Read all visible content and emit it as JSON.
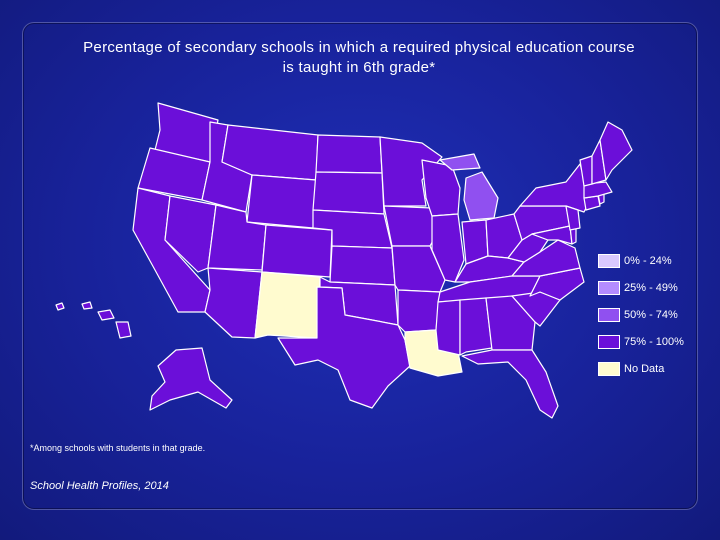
{
  "title": {
    "line1": "Percentage of secondary schools in which a required physical education course",
    "line2": "is taught in 6th grade*"
  },
  "legend": [
    {
      "label": "0% - 24%",
      "color": "#d9c8ff"
    },
    {
      "label": "25% - 49%",
      "color": "#b48cff"
    },
    {
      "label": "50% - 74%",
      "color": "#9050f0"
    },
    {
      "label": "75% - 100%",
      "color": "#6b0fd9"
    },
    {
      "label": "No Data",
      "color": "#fffbcf"
    }
  ],
  "states": {
    "50-74": [
      "MI"
    ],
    "75-100": [
      "WA",
      "OR",
      "CA",
      "NV",
      "ID",
      "MT",
      "WY",
      "UT",
      "CO",
      "AZ",
      "ND",
      "SD",
      "NE",
      "KS",
      "OK",
      "TX",
      "MN",
      "IA",
      "MO",
      "AR",
      "WI",
      "IL",
      "IN",
      "OH",
      "KY",
      "TN",
      "MS",
      "AL",
      "GA",
      "FL",
      "SC",
      "NC",
      "VA",
      "WV",
      "MD",
      "DE",
      "PA",
      "NY",
      "NJ",
      "CT",
      "RI",
      "MA",
      "VT",
      "NH",
      "ME",
      "AK",
      "HI"
    ],
    "no-data": [
      "NM",
      "LA"
    ]
  },
  "footnote": "*Among schools with students in that grade.",
  "source": "School Health Profiles, 2014",
  "colors": {
    "background": "#18229a",
    "border": "#ffffff"
  }
}
